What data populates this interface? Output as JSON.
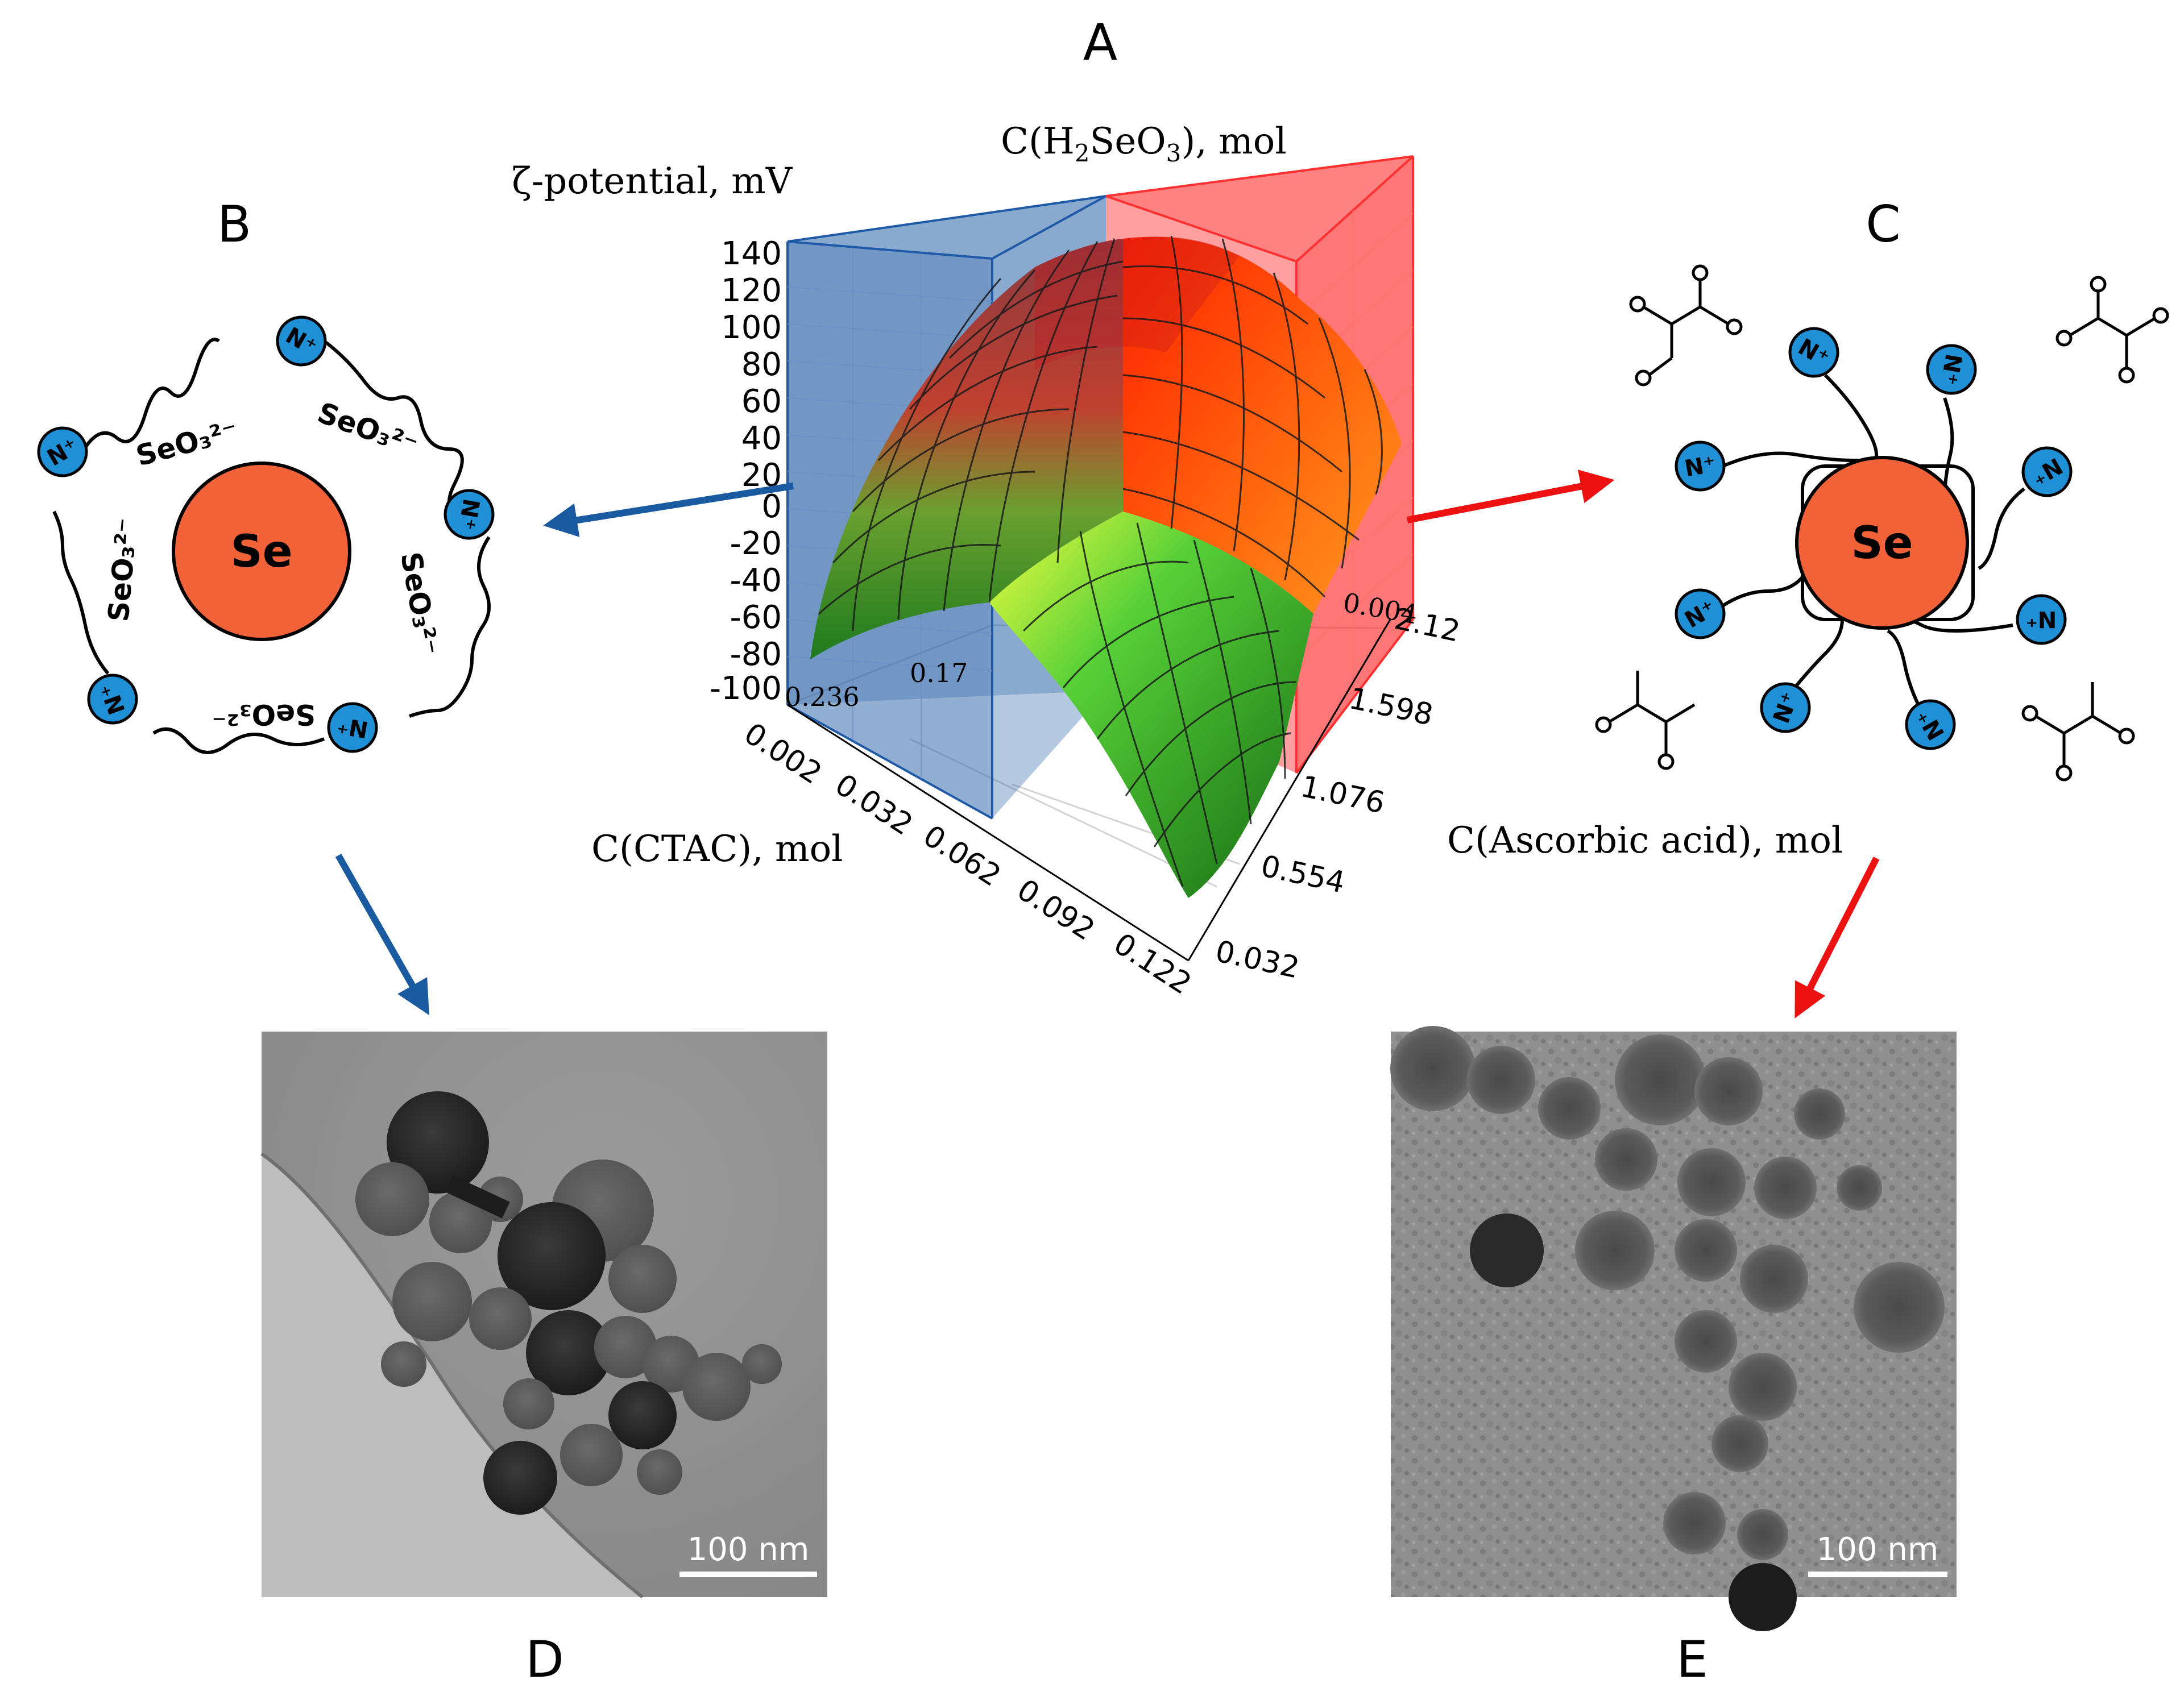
{
  "panels": {
    "a": "A",
    "b": "B",
    "c": "C",
    "d": "D",
    "e": "E"
  },
  "chart": {
    "zlabel": "ζ-potential, mV",
    "toplabel_prefix": "C(H",
    "toplabel_sub2": "2",
    "toplabel_mid": "SeO",
    "toplabel_sub3": "3",
    "toplabel_suffix": "), mol",
    "xlabel": "C(CTAC), mol",
    "ylabel": "C(Ascorbic acid), mol",
    "zticks": [
      "140",
      "120",
      "100",
      "80",
      "60",
      "40",
      "20",
      "0",
      "-20",
      "-40",
      "-60",
      "-80",
      "-100"
    ],
    "xticks": [
      "0.002",
      "0.032",
      "0.062",
      "0.092",
      "0.122"
    ],
    "yticks": [
      "0.032",
      "0.554",
      "1.076",
      "1.598",
      "2.12"
    ],
    "hidden_ticks": [
      "0.236",
      "0.17",
      "0.004"
    ]
  },
  "chart_data": {
    "type": "surface3d",
    "zlabel": "ζ-potential, mV",
    "xlabel": "C(CTAC), mol",
    "ylabel": "C(Ascorbic acid), mol",
    "zlim": [
      -100,
      140
    ],
    "x_ticks": [
      0.002,
      0.032,
      0.062,
      0.092,
      0.122
    ],
    "y_ticks": [
      0.032,
      0.554,
      1.076,
      1.598,
      2.12
    ],
    "peak_z": 140,
    "min_z": -90,
    "colors": {
      "low": "#1a7a1a",
      "mid": "#e8ff20",
      "high": "#ff2000",
      "blue_plane": "#2a63a8",
      "red_plane": "#ff2a2a"
    }
  },
  "schemes": {
    "b": {
      "core": "Se",
      "n_label": "N⁺",
      "anions": [
        "SeO₃²⁻",
        "SeO₃²⁻",
        "SeO₃²⁻",
        "SeO₃²⁻",
        "SeO₃²⁻"
      ]
    },
    "c": {
      "core": "Se",
      "n_label": "N⁺"
    }
  },
  "micrographs": {
    "d": {
      "scale": "100 nm"
    },
    "e": {
      "scale": "100 nm"
    }
  },
  "colors": {
    "blue_arrow": "#1a5aa0",
    "red_arrow": "#ee1111",
    "se_core": "#f26239",
    "n_bead": "#1f8fd6"
  }
}
